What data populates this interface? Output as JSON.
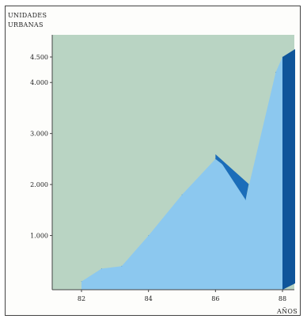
{
  "chart_data": {
    "type": "area",
    "title": "",
    "ylabel_lines": [
      "UNIDADES",
      "URBANAS"
    ],
    "xlabel": "AÑOS",
    "x_ticks": [
      "82",
      "84",
      "86",
      "88"
    ],
    "y_ticks": [
      "1.000",
      "2.000",
      "3.000",
      "4.000",
      "4.500"
    ],
    "xlim": [
      81.0,
      88.5
    ],
    "ylim": [
      0,
      4900
    ],
    "series": [
      {
        "x": [
          82.0,
          82.6,
          83.2,
          84.0,
          85.0,
          86.0,
          86.2,
          86.9,
          87.8,
          88.0
        ],
        "values": [
          100,
          350,
          400,
          1000,
          1800,
          2500,
          2400,
          1700,
          4200,
          4500
        ]
      }
    ],
    "colors": {
      "background_fill": "#b9d4c3",
      "area_fill": "#8cc8ef",
      "area_side": "#1b6db9",
      "area_side_dark": "#0f559a",
      "axis": "#444444"
    }
  }
}
